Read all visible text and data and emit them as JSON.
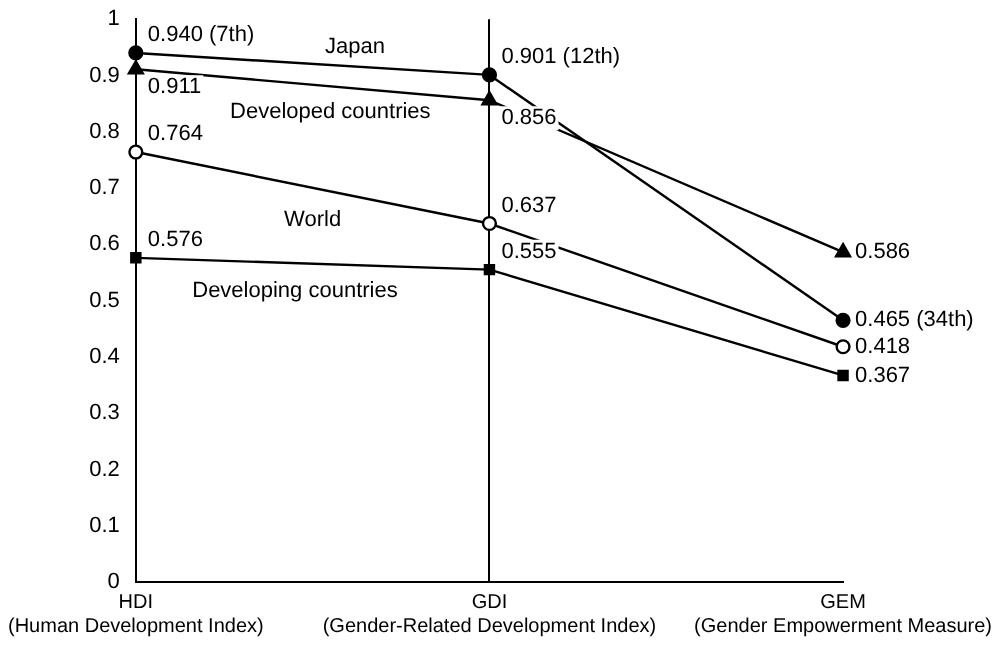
{
  "chart_data": {
    "type": "line",
    "categories": [
      "HDI\n(Human Development Index)",
      "GDI\n(Gender-Related Development Index)",
      "GEM\n(Gender Empowerment Measure)"
    ],
    "series": [
      {
        "name": "Japan",
        "color": "#000000",
        "marker": "circle",
        "values": [
          0.94,
          0.901,
          0.465
        ],
        "value_labels": [
          "0.940 (7th)",
          "0.901 (12th)",
          "0.465 (34th)"
        ]
      },
      {
        "name": "Developed countries",
        "color": "#000000",
        "marker": "triangle",
        "values": [
          0.911,
          0.856,
          0.586
        ],
        "value_labels": [
          "0.911",
          "0.856",
          "0.586"
        ]
      },
      {
        "name": "World",
        "color": "#000000",
        "marker": "open circle",
        "values": [
          0.764,
          0.637,
          0.418
        ],
        "value_labels": [
          "0.764",
          "0.637",
          "0.418"
        ]
      },
      {
        "name": "Developing countries",
        "color": "#000000",
        "marker": "square",
        "values": [
          0.576,
          0.555,
          0.367
        ],
        "value_labels": [
          "0.576",
          "0.555",
          "0.367"
        ]
      }
    ],
    "ylim": [
      0,
      1
    ],
    "yticks": [
      0,
      0.1,
      0.2,
      0.3,
      0.4,
      0.5,
      0.6,
      0.7,
      0.8,
      0.9,
      1
    ],
    "grid": "x",
    "legend": false
  }
}
